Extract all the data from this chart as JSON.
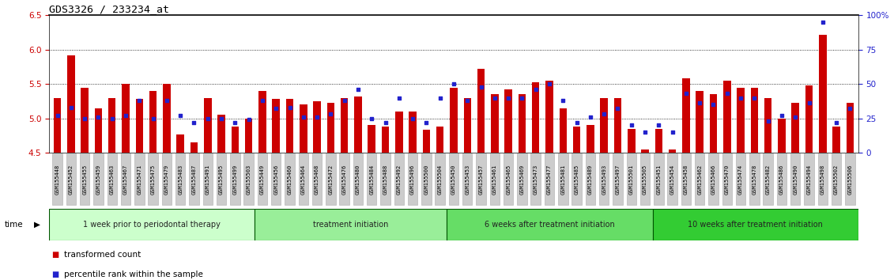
{
  "title": "GDS3326 / 233234_at",
  "ylim_left": [
    4.5,
    6.5
  ],
  "ylim_right": [
    0,
    100
  ],
  "yticks_left": [
    4.5,
    5.0,
    5.5,
    6.0,
    6.5
  ],
  "yticks_right": [
    0,
    25,
    50,
    75,
    100
  ],
  "yticklabels_right": [
    "0",
    "25",
    "50",
    "75",
    "100%"
  ],
  "bar_color": "#cc0000",
  "dot_color": "#2222cc",
  "bar_bottom": 4.5,
  "samples": [
    "GSM155448",
    "GSM155452",
    "GSM155455",
    "GSM155459",
    "GSM155463",
    "GSM155467",
    "GSM155471",
    "GSM155475",
    "GSM155479",
    "GSM155483",
    "GSM155487",
    "GSM155491",
    "GSM155495",
    "GSM155499",
    "GSM155503",
    "GSM155449",
    "GSM155456",
    "GSM155460",
    "GSM155464",
    "GSM155468",
    "GSM155472",
    "GSM155476",
    "GSM155480",
    "GSM155484",
    "GSM155488",
    "GSM155492",
    "GSM155496",
    "GSM155500",
    "GSM155504",
    "GSM155450",
    "GSM155453",
    "GSM155457",
    "GSM155461",
    "GSM155465",
    "GSM155469",
    "GSM155473",
    "GSM155477",
    "GSM155481",
    "GSM155485",
    "GSM155489",
    "GSM155493",
    "GSM155497",
    "GSM155501",
    "GSM155505",
    "GSM155451",
    "GSM155454",
    "GSM155458",
    "GSM155462",
    "GSM155466",
    "GSM155470",
    "GSM155474",
    "GSM155478",
    "GSM155482",
    "GSM155486",
    "GSM155490",
    "GSM155494",
    "GSM155498",
    "GSM155502",
    "GSM155506"
  ],
  "bar_values": [
    5.3,
    5.92,
    5.45,
    5.15,
    5.3,
    5.5,
    5.28,
    5.4,
    5.5,
    4.77,
    4.65,
    5.3,
    5.05,
    4.88,
    5.0,
    5.4,
    5.28,
    5.28,
    5.2,
    5.25,
    5.22,
    5.3,
    5.32,
    4.9,
    4.88,
    5.1,
    5.1,
    4.83,
    4.88,
    5.45,
    5.3,
    5.72,
    5.35,
    5.42,
    5.35,
    5.52,
    5.55,
    5.15,
    4.88,
    4.9,
    5.3,
    5.3,
    4.85,
    4.55,
    4.85,
    4.55,
    5.58,
    5.4,
    5.35,
    5.55,
    5.45,
    5.45,
    5.3,
    5.0,
    5.22,
    5.48,
    6.22,
    4.88,
    5.22
  ],
  "percentile_values": [
    27,
    33,
    25,
    26,
    25,
    27,
    38,
    25,
    38,
    27,
    22,
    25,
    25,
    22,
    24,
    38,
    32,
    33,
    26,
    26,
    28,
    38,
    46,
    25,
    22,
    40,
    25,
    22,
    40,
    50,
    38,
    48,
    40,
    40,
    40,
    46,
    50,
    38,
    22,
    26,
    28,
    32,
    20,
    15,
    20,
    15,
    43,
    36,
    35,
    43,
    40,
    40,
    23,
    27,
    26,
    36,
    95,
    22,
    32
  ],
  "groups": [
    {
      "label": "1 week prior to periodontal therapy",
      "start": 0,
      "end": 15,
      "color": "#ccffcc"
    },
    {
      "label": "treatment initiation",
      "start": 15,
      "end": 29,
      "color": "#99ee99"
    },
    {
      "label": "6 weeks after treatment initiation",
      "start": 29,
      "end": 44,
      "color": "#66dd66"
    },
    {
      "label": "10 weeks after treatment initiation",
      "start": 44,
      "end": 59,
      "color": "#33cc33"
    }
  ],
  "left_axis_color": "#cc0000",
  "right_axis_color": "#2222cc",
  "tick_label_bg": "#cccccc",
  "tick_label_edge": "#aaaaaa",
  "grid_color": "#000000",
  "legend_items": [
    {
      "color": "#cc0000",
      "label": "transformed count"
    },
    {
      "color": "#2222cc",
      "label": "percentile rank within the sample"
    }
  ]
}
